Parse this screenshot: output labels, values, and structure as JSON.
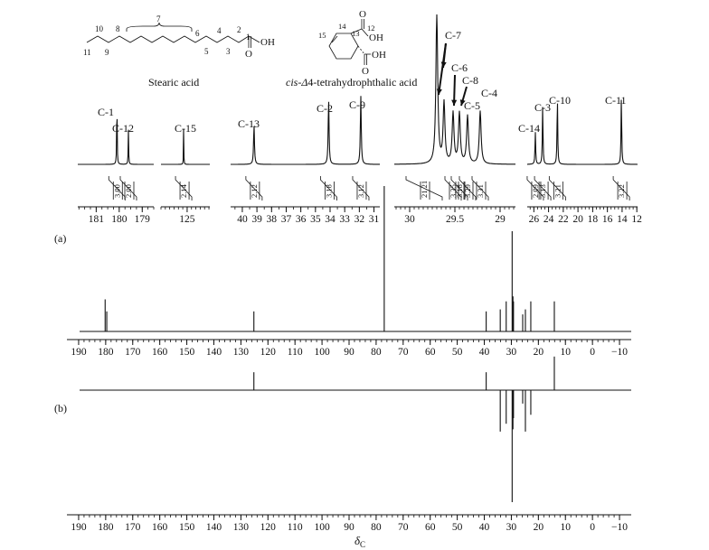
{
  "structures": {
    "stearic": {
      "name": "Stearic acid",
      "atom_labels": [
        "10",
        "8",
        "7",
        "6",
        "4",
        "2",
        "1",
        "11",
        "9",
        "5",
        "3"
      ],
      "group": "OH"
    },
    "cis_thpa": {
      "name_prefix": "cis-",
      "name_delta": "Δ",
      "name_rest": "4-tetrahydrophthalic acid",
      "atom_labels": [
        "15",
        "14",
        "13",
        "12"
      ],
      "groups": [
        "OH",
        "OH",
        "O",
        "O"
      ]
    }
  },
  "chart_data": [
    {
      "type": "line",
      "id": "expansions",
      "panels": [
        {
          "xlim": [
            181.8,
            178.5
          ],
          "ticks": [
            181,
            180,
            179
          ],
          "peaks": [
            {
              "ppm": 180.1,
              "height": 1.0,
              "label": "C-1",
              "integral": "3.00"
            },
            {
              "ppm": 179.6,
              "height": 0.48,
              "label": "C-12",
              "integral": "2.00"
            }
          ]
        },
        {
          "xlim": [
            126.5,
            123.7
          ],
          "ticks": [
            125
          ],
          "peaks": [
            {
              "ppm": 125.2,
              "height": 0.55,
              "label": "C-15",
              "integral": "2.14"
            }
          ]
        },
        {
          "xlim": [
            40.8,
            30.6
          ],
          "ticks": [
            40,
            39,
            38,
            37,
            36,
            35,
            34,
            33,
            32,
            31
          ],
          "peaks": [
            {
              "ppm": 39.2,
              "height": 0.55,
              "label": "C-13",
              "integral": "2.12"
            },
            {
              "ppm": 34.1,
              "height": 0.9,
              "label": "C-2",
              "integral": "3.18"
            },
            {
              "ppm": 31.9,
              "height": 0.95,
              "label": "C-9",
              "integral": "3.12"
            }
          ]
        },
        {
          "xlim": [
            30.17,
            28.83
          ],
          "ticks": [
            30.0,
            29.5,
            29.0
          ],
          "peaks": [
            {
              "ppm": 29.7,
              "height": 3.0,
              "label": "C-7",
              "integral": "21.21"
            },
            {
              "ppm": 29.62,
              "height": 1.2
            },
            {
              "ppm": 29.52,
              "height": 1.0,
              "label": "C-6",
              "integral": "3.35"
            },
            {
              "ppm": 29.45,
              "height": 1.0,
              "label": "C-8",
              "integral": "3.18"
            },
            {
              "ppm": 29.36,
              "height": 0.95,
              "label": "C-5",
              "integral": "3.29"
            },
            {
              "ppm": 29.22,
              "height": 1.05,
              "label": "C-4",
              "integral": "3.31"
            }
          ]
        },
        {
          "xlim": [
            26.9,
            11.9
          ],
          "ticks": [
            26,
            24,
            22,
            20,
            18,
            16,
            14,
            12
          ],
          "peaks": [
            {
              "ppm": 25.8,
              "height": 0.45,
              "label": "C-14",
              "integral": "2.09"
            },
            {
              "ppm": 24.8,
              "height": 0.82,
              "label": "C-3",
              "integral": "3.13"
            },
            {
              "ppm": 22.8,
              "height": 0.95,
              "label": "C-10",
              "integral": "3.21"
            },
            {
              "ppm": 14.1,
              "height": 0.95,
              "label": "C-11",
              "integral": "3.22"
            }
          ]
        }
      ]
    },
    {
      "type": "line",
      "id": "spectrum_a",
      "label": "(a)",
      "xlim": [
        195,
        -15
      ],
      "ticks": [
        190,
        180,
        170,
        160,
        150,
        140,
        130,
        120,
        110,
        100,
        90,
        80,
        70,
        60,
        50,
        40,
        30,
        20,
        10,
        0,
        -10
      ],
      "peaks": [
        {
          "ppm": 180.2,
          "height": 0.32
        },
        {
          "ppm": 179.6,
          "height": 0.2
        },
        {
          "ppm": 125.2,
          "height": 0.2
        },
        {
          "ppm": 77.0,
          "height": 1.45
        },
        {
          "ppm": 39.3,
          "height": 0.2
        },
        {
          "ppm": 34.1,
          "height": 0.22
        },
        {
          "ppm": 31.9,
          "height": 0.3
        },
        {
          "ppm": 29.7,
          "height": 1.0
        },
        {
          "ppm": 29.4,
          "height": 0.35
        },
        {
          "ppm": 29.2,
          "height": 0.3
        },
        {
          "ppm": 25.8,
          "height": 0.17
        },
        {
          "ppm": 24.8,
          "height": 0.22
        },
        {
          "ppm": 22.8,
          "height": 0.3
        },
        {
          "ppm": 14.1,
          "height": 0.3
        }
      ]
    },
    {
      "type": "line",
      "id": "spectrum_b",
      "label": "(b)",
      "xlim": [
        195,
        -15
      ],
      "ticks": [
        190,
        180,
        170,
        160,
        150,
        140,
        130,
        120,
        110,
        100,
        90,
        80,
        70,
        60,
        50,
        40,
        30,
        20,
        10,
        0,
        -10
      ],
      "xlabel_main": "δ",
      "xlabel_sub": "C",
      "peaks": [
        {
          "ppm": 125.2,
          "height": 0.16
        },
        {
          "ppm": 39.3,
          "height": 0.16
        },
        {
          "ppm": 14.1,
          "height": 0.3
        },
        {
          "ppm": 34.1,
          "height": -0.37
        },
        {
          "ppm": 31.9,
          "height": -0.3
        },
        {
          "ppm": 29.7,
          "height": -1.0
        },
        {
          "ppm": 29.4,
          "height": -0.35
        },
        {
          "ppm": 29.2,
          "height": -0.25
        },
        {
          "ppm": 25.8,
          "height": -0.12
        },
        {
          "ppm": 24.8,
          "height": -0.37
        },
        {
          "ppm": 22.8,
          "height": -0.22
        }
      ]
    }
  ]
}
